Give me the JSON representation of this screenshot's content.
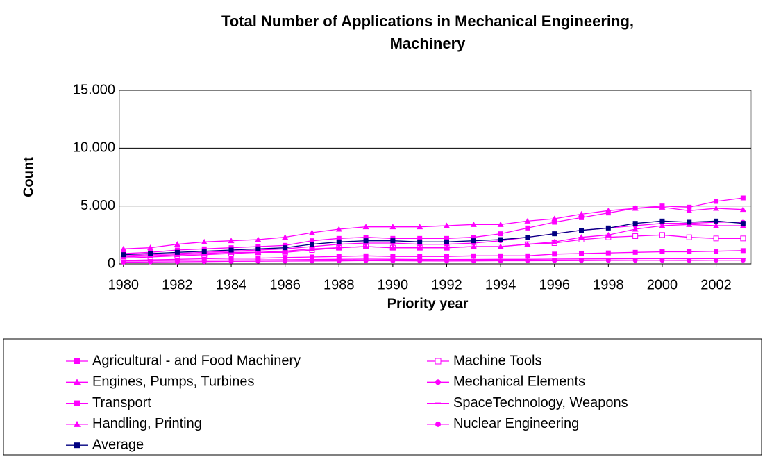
{
  "chart_data": {
    "type": "line",
    "title": [
      "Total Number of Applications in Mechanical Engineering,",
      "Machinery"
    ],
    "x_label": "Priority year",
    "y_label": "Count",
    "x": [
      1980,
      1981,
      1982,
      1983,
      1984,
      1985,
      1986,
      1987,
      1988,
      1989,
      1990,
      1991,
      1992,
      1993,
      1994,
      1995,
      1996,
      1997,
      1998,
      1999,
      2000,
      2001,
      2002,
      2003
    ],
    "xlim": [
      1979.85,
      2003.3
    ],
    "xticks": [
      1980,
      1982,
      1984,
      1986,
      1988,
      1990,
      1992,
      1994,
      1996,
      1998,
      2000,
      2002
    ],
    "ylim": [
      0,
      15000
    ],
    "yticks": [
      0,
      {
        "value": 5000,
        "label": "5.000"
      },
      {
        "value": 10000,
        "label": "10.000"
      },
      {
        "value": 15000,
        "label": "15.000"
      }
    ],
    "grid": true,
    "legend": "bottom",
    "series": [
      {
        "name": "Agricultural - and Food Machinery",
        "color": "#ff00ff",
        "marker": "square",
        "values": [
          300,
          350,
          400,
          450,
          500,
          500,
          550,
          600,
          650,
          700,
          650,
          650,
          650,
          700,
          700,
          700,
          850,
          900,
          950,
          1000,
          1050,
          1050,
          1100,
          1150
        ]
      },
      {
        "name": "Machine Tools",
        "color": "#ff00ff",
        "marker": "square-open",
        "values": [
          500,
          600,
          700,
          800,
          900,
          1000,
          1000,
          1200,
          1400,
          1500,
          1400,
          1400,
          1400,
          1500,
          1500,
          1700,
          1800,
          2100,
          2300,
          2400,
          2500,
          2300,
          2200,
          2200
        ]
      },
      {
        "name": "Engines, Pumps, Turbines",
        "color": "#ff00ff",
        "marker": "triangle",
        "values": [
          1300,
          1400,
          1700,
          1900,
          2000,
          2100,
          2300,
          2700,
          3000,
          3200,
          3200,
          3200,
          3300,
          3400,
          3400,
          3700,
          3900,
          4300,
          4600,
          4800,
          4900,
          4600,
          4800,
          4700
        ]
      },
      {
        "name": "Mechanical Elements",
        "color": "#ff00ff",
        "marker": "circle",
        "values": [
          700,
          800,
          900,
          1000,
          1100,
          1200,
          1300,
          1500,
          1700,
          1800,
          1800,
          1700,
          1700,
          1800,
          2000,
          2300,
          2600,
          2900,
          3100,
          3300,
          3500,
          3500,
          3600,
          3600
        ]
      },
      {
        "name": "Transport",
        "color": "#ff00ff",
        "marker": "square",
        "values": [
          900,
          1000,
          1200,
          1300,
          1400,
          1500,
          1600,
          2000,
          2200,
          2300,
          2200,
          2200,
          2200,
          2300,
          2600,
          3100,
          3600,
          4000,
          4400,
          4800,
          5000,
          4900,
          5400,
          5700
        ]
      },
      {
        "name": "SpaceTechnology, Weapons",
        "color": "#ff00ff",
        "marker": "dash",
        "values": [
          250,
          280,
          300,
          320,
          340,
          350,
          360,
          380,
          400,
          420,
          400,
          390,
          380,
          390,
          400,
          400,
          420,
          430,
          440,
          450,
          460,
          450,
          460,
          470
        ]
      },
      {
        "name": "Handling, Printing",
        "color": "#ff00ff",
        "marker": "triangle",
        "values": [
          600,
          700,
          800,
          900,
          1000,
          1000,
          1100,
          1300,
          1400,
          1500,
          1400,
          1400,
          1400,
          1500,
          1500,
          1700,
          1900,
          2300,
          2500,
          3000,
          3300,
          3400,
          3300,
          3300
        ]
      },
      {
        "name": "Nuclear Engineering",
        "color": "#ff00ff",
        "marker": "circle",
        "values": [
          150,
          170,
          180,
          200,
          220,
          230,
          240,
          250,
          260,
          280,
          270,
          260,
          250,
          260,
          270,
          270,
          280,
          290,
          300,
          310,
          310,
          300,
          320,
          320
        ]
      },
      {
        "name": "Average",
        "color": "#000080",
        "marker": "square",
        "values": [
          800,
          900,
          1000,
          1100,
          1200,
          1300,
          1400,
          1700,
          1900,
          2000,
          2000,
          1900,
          1900,
          2000,
          2100,
          2300,
          2600,
          2900,
          3100,
          3500,
          3700,
          3600,
          3700,
          3500
        ]
      }
    ]
  }
}
